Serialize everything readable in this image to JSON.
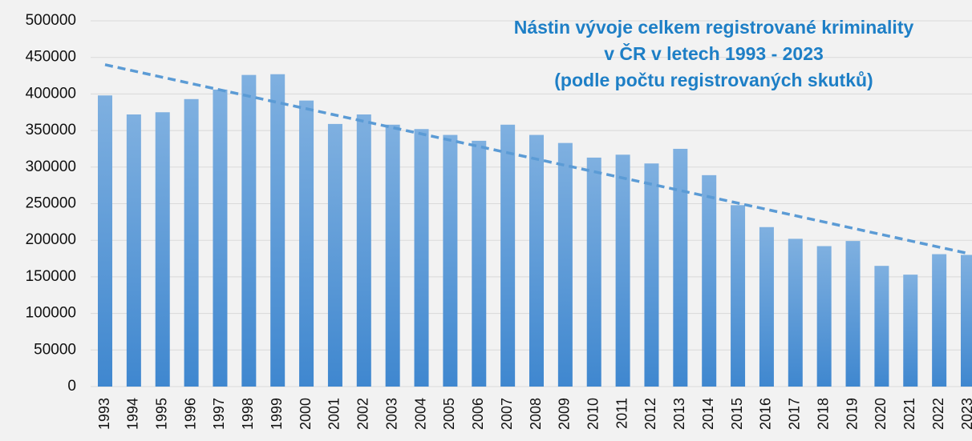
{
  "chart_data": {
    "type": "bar",
    "title": [
      "Nástin vývoje celkem registrované kriminality",
      "v ČR v letech 1993 - 2023",
      "(podle počtu registrovaných skutků)"
    ],
    "categories": [
      "1993",
      "1994",
      "1995",
      "1996",
      "1997",
      "1998",
      "1999",
      "2000",
      "2001",
      "2002",
      "2003",
      "2004",
      "2005",
      "2006",
      "2007",
      "2008",
      "2009",
      "2010",
      "2011",
      "2012",
      "2013",
      "2014",
      "2015",
      "2016",
      "2017",
      "2018",
      "2019",
      "2020",
      "2021",
      "2022",
      "2023"
    ],
    "values": [
      398000,
      372000,
      375000,
      393000,
      406000,
      426000,
      427000,
      391000,
      359000,
      372000,
      358000,
      352000,
      344000,
      336000,
      358000,
      344000,
      333000,
      313000,
      317000,
      305000,
      325000,
      289000,
      248000,
      218000,
      202000,
      192000,
      199000,
      165000,
      153000,
      181000,
      180000
    ],
    "color": "#4a90d4",
    "trend": [
      440000,
      182000
    ],
    "ylim": [
      0,
      500000
    ],
    "yticks": [
      0,
      50000,
      100000,
      150000,
      200000,
      250000,
      300000,
      350000,
      400000,
      450000,
      500000
    ],
    "grid": true
  }
}
